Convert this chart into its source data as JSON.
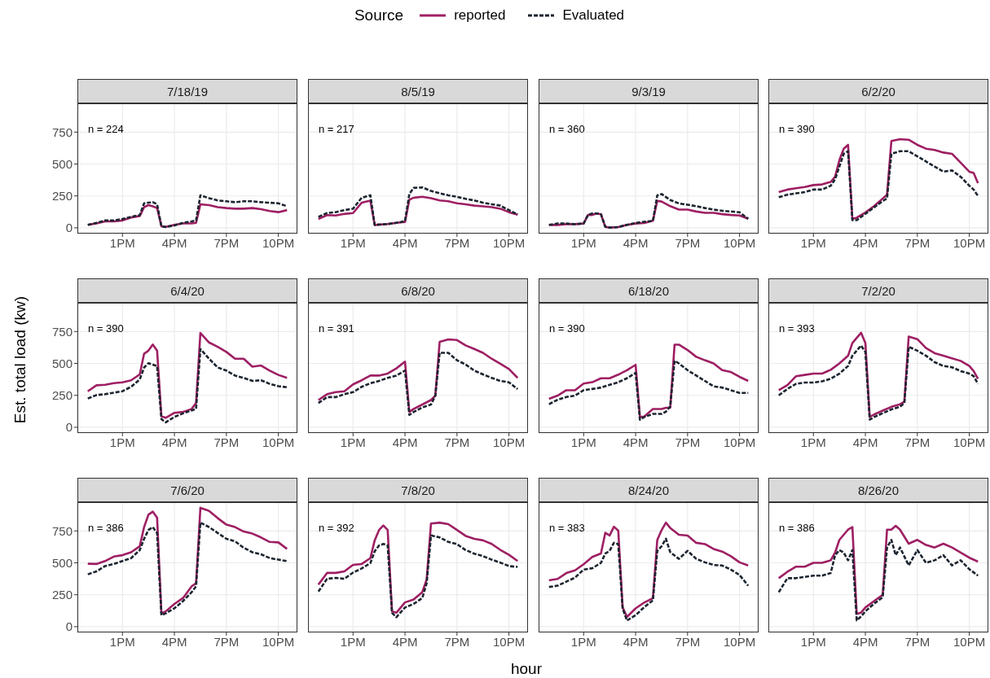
{
  "chart_data": [
    {
      "type": "line",
      "title": "7/18/19",
      "legend": "top",
      "legend_title": "Source",
      "annotations": [
        "n = 224"
      ],
      "x": [
        "--07-18T11:00",
        "--07-18T11:30",
        "--07-18T12:00",
        "--07-18T12:30",
        "--07-18T13:00",
        "--07-18T13:30",
        "--07-18T14:00",
        "--07-18T14:15",
        "--07-18T14:30",
        "--07-18T14:45",
        "--07-18T15:00",
        "--07-18T15:15",
        "--07-18T15:30",
        "--07-18T16:00",
        "--07-18T16:30",
        "--07-18T17:00",
        "--07-18T17:15",
        "--07-18T17:30",
        "--07-18T18:00",
        "--07-18T18:30",
        "--07-18T19:00",
        "--07-18T19:30",
        "--07-18T20:00",
        "--07-18T20:30",
        "--07-18T21:00",
        "--07-18T21:30",
        "--07-18T22:00",
        "--07-18T22:30"
      ],
      "xlim": [
        "--07-18T10:24",
        "--07-18T23:06"
      ],
      "xticks": [
        {
          "value": "--07-18T13:00",
          "label": "1PM"
        },
        {
          "value": "--07-18T16:00",
          "label": "4PM"
        },
        {
          "value": "--07-18T19:00",
          "label": "7PM"
        },
        {
          "value": "--07-18T22:00",
          "label": "10PM"
        }
      ],
      "ylim": [
        -45,
        975
      ],
      "yticks": [
        0,
        250,
        500,
        750
      ],
      "grid": true,
      "series": [
        {
          "name": "reported",
          "color": "#9e1f63",
          "line_style": "solid",
          "values": [
            23,
            35,
            51,
            51,
            58,
            81,
            93,
            162,
            178,
            169,
            155,
            12,
            7,
            23,
            35,
            35,
            39,
            185,
            178,
            162,
            155,
            150,
            150,
            155,
            146,
            132,
            123,
            139
          ]
        },
        {
          "name": "Evaluated",
          "color": "#1c2530",
          "line_style": "dashed",
          "values": [
            23,
            39,
            58,
            58,
            69,
            86,
            100,
            192,
            197,
            201,
            185,
            12,
            7,
            19,
            39,
            51,
            58,
            255,
            232,
            215,
            208,
            201,
            208,
            208,
            201,
            197,
            192,
            169
          ]
        }
      ]
    },
    {
      "type": "line",
      "title": "8/5/19",
      "tick_labels": "x",
      "annotations": [
        "n = 217"
      ],
      "x": [
        "--08-05T11:00",
        "--08-05T11:30",
        "--08-05T12:00",
        "--08-05T12:30",
        "--08-05T13:00",
        "--08-05T13:30",
        "--08-05T14:00",
        "--08-05T14:15",
        "--08-05T15:00",
        "--08-05T15:30",
        "--08-05T16:00",
        "--08-05T16:15",
        "--08-05T16:30",
        "--08-05T17:00",
        "--08-05T17:30",
        "--08-05T18:00",
        "--08-05T18:30",
        "--08-05T19:00",
        "--08-05T19:30",
        "--08-05T20:00",
        "--08-05T20:30",
        "--08-05T21:00",
        "--08-05T21:30",
        "--08-05T22:00",
        "--08-05T22:30"
      ],
      "xlim": [
        "--08-05T10:24",
        "--08-05T23:06"
      ],
      "xticks": [
        {
          "value": "--08-05T13:00",
          "label": "1PM"
        },
        {
          "value": "--08-05T16:00",
          "label": "4PM"
        },
        {
          "value": "--08-05T19:00",
          "label": "7PM"
        },
        {
          "value": "--08-05T22:00",
          "label": "10PM"
        }
      ],
      "ylim": [
        -45,
        975
      ],
      "yticks": [
        0,
        250,
        500,
        750
      ],
      "grid": true,
      "series": [
        {
          "color": "#9e1f63",
          "line_style": "solid",
          "values": [
            69,
            100,
            97,
            109,
            116,
            197,
            213,
            23,
            30,
            39,
            46,
            220,
            236,
            243,
            232,
            215,
            208,
            192,
            185,
            174,
            169,
            162,
            150,
            123,
            104
          ]
        },
        {
          "color": "#1c2530",
          "line_style": "dashed",
          "values": [
            86,
            116,
            123,
            139,
            150,
            236,
            255,
            23,
            30,
            39,
            53,
            266,
            313,
            317,
            289,
            271,
            255,
            243,
            227,
            215,
            197,
            185,
            174,
            139,
            104
          ]
        }
      ]
    },
    {
      "type": "line",
      "title": "9/3/19",
      "tick_labels": "x",
      "annotations": [
        "n = 360"
      ],
      "x": [
        "--09-03T11:00",
        "--09-03T11:30",
        "--09-03T12:00",
        "--09-03T12:30",
        "--09-03T13:00",
        "--09-03T13:15",
        "--09-03T13:30",
        "--09-03T13:45",
        "--09-03T14:00",
        "--09-03T14:15",
        "--09-03T14:30",
        "--09-03T15:00",
        "--09-03T15:30",
        "--09-03T16:00",
        "--09-03T16:30",
        "--09-03T17:00",
        "--09-03T17:15",
        "--09-03T17:30",
        "--09-03T18:00",
        "--09-03T18:30",
        "--09-03T19:00",
        "--09-03T19:30",
        "--09-03T20:00",
        "--09-03T20:30",
        "--09-03T21:00",
        "--09-03T21:30",
        "--09-03T22:00",
        "--09-03T22:30"
      ],
      "xlim": [
        "--09-03T10:24",
        "--09-03T23:06"
      ],
      "xticks": [
        {
          "value": "--09-03T13:00",
          "label": "1PM"
        },
        {
          "value": "--09-03T16:00",
          "label": "4PM"
        },
        {
          "value": "--09-03T19:00",
          "label": "7PM"
        },
        {
          "value": "--09-03T22:00",
          "label": "10PM"
        }
      ],
      "ylim": [
        -45,
        975
      ],
      "yticks": [
        0,
        250,
        500,
        750
      ],
      "grid": true,
      "series": [
        {
          "color": "#9e1f63",
          "line_style": "solid",
          "values": [
            23,
            23,
            29,
            29,
            34,
            101,
            101,
            113,
            107,
            8,
            2,
            6,
            23,
            34,
            38,
            55,
            212,
            206,
            170,
            143,
            143,
            128,
            118,
            118,
            107,
            101,
            97,
            71
          ]
        },
        {
          "color": "#1c2530",
          "line_style": "dashed",
          "values": [
            23,
            34,
            34,
            29,
            34,
            101,
            113,
            113,
            107,
            8,
            2,
            6,
            23,
            38,
            48,
            55,
            254,
            265,
            218,
            191,
            181,
            170,
            155,
            143,
            134,
            128,
            122,
            71
          ]
        }
      ]
    },
    {
      "type": "line",
      "title": "6/2/20",
      "tick_labels": "x",
      "annotations": [
        "n = 390"
      ],
      "x": [
        "--06-02T11:00",
        "--06-02T11:30",
        "--06-02T12:00",
        "--06-02T12:30",
        "--06-02T13:00",
        "--06-02T13:30",
        "--06-02T14:00",
        "--06-02T14:15",
        "--06-02T14:30",
        "--06-02T14:45",
        "--06-02T15:00",
        "--06-02T15:15",
        "--06-02T15:30",
        "--06-02T16:00",
        "--06-02T16:30",
        "--06-02T17:00",
        "--06-02T17:15",
        "--06-02T17:30",
        "--06-02T18:00",
        "--06-02T18:30",
        "--06-02T19:00",
        "--06-02T19:30",
        "--06-02T20:00",
        "--06-02T20:30",
        "--06-02T21:00",
        "--06-02T21:30",
        "--06-02T22:00",
        "--06-02T22:15",
        "--06-02T22:30"
      ],
      "xlim": [
        "--06-02T10:24",
        "--06-02T23:06"
      ],
      "xticks": [
        {
          "value": "--06-02T13:00",
          "label": "1PM"
        },
        {
          "value": "--06-02T16:00",
          "label": "4PM"
        },
        {
          "value": "--06-02T19:00",
          "label": "7PM"
        },
        {
          "value": "--06-02T22:00",
          "label": "10PM"
        }
      ],
      "ylim": [
        -45,
        975
      ],
      "yticks": [
        0,
        250,
        500,
        750
      ],
      "grid": true,
      "series": [
        {
          "color": "#9e1f63",
          "line_style": "solid",
          "values": [
            280,
            300,
            310,
            320,
            335,
            340,
            360,
            400,
            530,
            620,
            650,
            70,
            80,
            120,
            170,
            230,
            260,
            680,
            695,
            690,
            650,
            620,
            610,
            590,
            580,
            510,
            440,
            430,
            350
          ]
        },
        {
          "color": "#1c2530",
          "line_style": "dashed",
          "values": [
            240,
            260,
            270,
            280,
            300,
            300,
            330,
            380,
            480,
            580,
            600,
            60,
            60,
            110,
            160,
            210,
            230,
            580,
            600,
            600,
            560,
            520,
            480,
            440,
            450,
            400,
            330,
            300,
            250
          ]
        }
      ]
    },
    {
      "type": "line",
      "title": "6/4/20",
      "ylabel": "Est. total load (kw)",
      "annotations": [
        "n = 390"
      ],
      "x": [
        "--06-04T11:00",
        "--06-04T11:30",
        "--06-04T12:00",
        "--06-04T12:30",
        "--06-04T13:00",
        "--06-04T13:30",
        "--06-04T14:00",
        "--06-04T14:15",
        "--06-04T14:30",
        "--06-04T14:45",
        "--06-04T15:00",
        "--06-04T15:15",
        "--06-04T15:30",
        "--06-04T16:00",
        "--06-04T16:30",
        "--06-04T17:00",
        "--06-04T17:15",
        "--06-04T17:30",
        "--06-04T18:00",
        "--06-04T18:30",
        "--06-04T19:00",
        "--06-04T19:30",
        "--06-04T20:00",
        "--06-04T20:30",
        "--06-04T21:00",
        "--06-04T21:30",
        "--06-04T22:00",
        "--06-04T22:30"
      ],
      "xlim": [
        "--06-04T10:24",
        "--06-04T23:06"
      ],
      "xticks": [
        {
          "value": "--06-04T13:00",
          "label": "1PM"
        },
        {
          "value": "--06-04T16:00",
          "label": "4PM"
        },
        {
          "value": "--06-04T19:00",
          "label": "7PM"
        },
        {
          "value": "--06-04T22:00",
          "label": "10PM"
        }
      ],
      "ylim": [
        -45,
        975
      ],
      "yticks": [
        0,
        250,
        500,
        750
      ],
      "grid": true,
      "series": [
        {
          "color": "#9e1f63",
          "line_style": "solid",
          "values": [
            282,
            329,
            333,
            345,
            352,
            368,
            414,
            576,
            600,
            648,
            600,
            86,
            74,
            113,
            120,
            144,
            190,
            738,
            664,
            630,
            590,
            537,
            537,
            475,
            484,
            444,
            410,
            387
          ]
        },
        {
          "color": "#1c2530",
          "line_style": "dashed",
          "values": [
            225,
            252,
            259,
            271,
            282,
            317,
            375,
            468,
            502,
            491,
            479,
            63,
            39,
            81,
            109,
            132,
            144,
            613,
            537,
            468,
            444,
            405,
            387,
            363,
            368,
            340,
            322,
            313
          ]
        }
      ]
    },
    {
      "type": "line",
      "title": "6/8/20",
      "tick_labels": "x",
      "annotations": [
        "n = 391"
      ],
      "x": [
        "--06-08T11:00",
        "--06-08T11:30",
        "--06-08T12:00",
        "--06-08T12:30",
        "--06-08T13:00",
        "--06-08T13:30",
        "--06-08T14:00",
        "--06-08T14:30",
        "--06-08T15:00",
        "--06-08T15:30",
        "--06-08T16:00",
        "--06-08T16:15",
        "--06-08T16:30",
        "--06-08T17:00",
        "--06-08T17:30",
        "--06-08T17:45",
        "--06-08T18:00",
        "--06-08T18:30",
        "--06-08T19:00",
        "--06-08T19:30",
        "--06-08T20:00",
        "--06-08T20:30",
        "--06-08T21:00",
        "--06-08T21:30",
        "--06-08T22:00",
        "--06-08T22:30"
      ],
      "xlim": [
        "--06-08T10:24",
        "--06-08T23:06"
      ],
      "xticks": [
        {
          "value": "--06-08T13:00",
          "label": "1PM"
        },
        {
          "value": "--06-08T16:00",
          "label": "4PM"
        },
        {
          "value": "--06-08T19:00",
          "label": "7PM"
        },
        {
          "value": "--06-08T22:00",
          "label": "10PM"
        }
      ],
      "ylim": [
        -45,
        975
      ],
      "yticks": [
        0,
        250,
        500,
        750
      ],
      "grid": true,
      "series": [
        {
          "color": "#9e1f63",
          "line_style": "solid",
          "values": [
            213,
            259,
            275,
            282,
            336,
            368,
            405,
            405,
            421,
            461,
            514,
            120,
            144,
            178,
            213,
            248,
            669,
            688,
            683,
            641,
            613,
            583,
            537,
            498,
            456,
            387
          ]
        },
        {
          "color": "#1c2530",
          "line_style": "dashed",
          "values": [
            190,
            236,
            236,
            259,
            275,
            317,
            345,
            363,
            387,
            405,
            444,
            97,
            120,
            155,
            178,
            248,
            583,
            583,
            525,
            491,
            444,
            414,
            387,
            363,
            352,
            299
          ]
        }
      ]
    },
    {
      "type": "line",
      "title": "6/18/20",
      "tick_labels": "x",
      "annotations": [
        "n = 390"
      ],
      "x": [
        "--06-18T11:00",
        "--06-18T11:30",
        "--06-18T12:00",
        "--06-18T12:30",
        "--06-18T13:00",
        "--06-18T13:30",
        "--06-18T14:00",
        "--06-18T14:30",
        "--06-18T15:00",
        "--06-18T15:30",
        "--06-18T16:00",
        "--06-18T16:15",
        "--06-18T16:30",
        "--06-18T17:00",
        "--06-18T17:30",
        "--06-18T17:45",
        "--06-18T18:00",
        "--06-18T18:15",
        "--06-18T18:30",
        "--06-18T19:00",
        "--06-18T19:30",
        "--06-18T20:00",
        "--06-18T20:30",
        "--06-18T21:00",
        "--06-18T21:30",
        "--06-18T22:00",
        "--06-18T22:30"
      ],
      "xlim": [
        "--06-18T10:24",
        "--06-18T23:06"
      ],
      "xticks": [
        {
          "value": "--06-18T13:00",
          "label": "1PM"
        },
        {
          "value": "--06-18T16:00",
          "label": "4PM"
        },
        {
          "value": "--06-18T19:00",
          "label": "7PM"
        },
        {
          "value": "--06-18T22:00",
          "label": "10PM"
        }
      ],
      "ylim": [
        -45,
        975
      ],
      "yticks": [
        0,
        250,
        500,
        750
      ],
      "grid": true,
      "series": [
        {
          "color": "#9e1f63",
          "line_style": "solid",
          "values": [
            223,
            248,
            290,
            290,
            342,
            353,
            384,
            384,
            412,
            447,
            489,
            80,
            84,
            143,
            143,
            153,
            153,
            647,
            647,
            605,
            552,
            525,
            500,
            447,
            433,
            395,
            363
          ]
        },
        {
          "color": "#1c2530",
          "line_style": "dashed",
          "values": [
            181,
            216,
            237,
            248,
            290,
            300,
            311,
            332,
            353,
            384,
            426,
            59,
            80,
            105,
            105,
            122,
            164,
            521,
            500,
            447,
            405,
            363,
            321,
            311,
            290,
            269,
            269
          ]
        }
      ]
    },
    {
      "type": "line",
      "title": "7/2/20",
      "tick_labels": "x",
      "annotations": [
        "n = 393"
      ],
      "x": [
        "--07-02T11:00",
        "--07-02T11:30",
        "--07-02T12:00",
        "--07-02T12:30",
        "--07-02T13:00",
        "--07-02T13:30",
        "--07-02T14:00",
        "--07-02T14:30",
        "--07-02T15:00",
        "--07-02T15:15",
        "--07-02T15:30",
        "--07-02T15:45",
        "--07-02T16:00",
        "--07-02T16:15",
        "--07-02T16:30",
        "--07-02T17:00",
        "--07-02T17:30",
        "--07-02T18:00",
        "--07-02T18:15",
        "--07-02T18:30",
        "--07-02T19:00",
        "--07-02T19:30",
        "--07-02T20:00",
        "--07-02T20:30",
        "--07-02T21:00",
        "--07-02T21:30",
        "--07-02T22:00",
        "--07-02T22:15",
        "--07-02T22:30"
      ],
      "xlim": [
        "--07-02T10:24",
        "--07-02T23:06"
      ],
      "xticks": [
        {
          "value": "--07-02T13:00",
          "label": "1PM"
        },
        {
          "value": "--07-02T16:00",
          "label": "4PM"
        },
        {
          "value": "--07-02T19:00",
          "label": "7PM"
        },
        {
          "value": "--07-02T22:00",
          "label": "10PM"
        }
      ],
      "ylim": [
        -45,
        975
      ],
      "yticks": [
        0,
        250,
        500,
        750
      ],
      "grid": true,
      "series": [
        {
          "color": "#9e1f63",
          "line_style": "solid",
          "values": [
            290,
            330,
            400,
            410,
            420,
            420,
            450,
            500,
            560,
            660,
            700,
            740,
            660,
            80,
            100,
            130,
            160,
            180,
            200,
            710,
            690,
            620,
            580,
            560,
            540,
            520,
            480,
            440,
            380
          ]
        },
        {
          "color": "#1c2530",
          "line_style": "dashed",
          "values": [
            250,
            300,
            340,
            350,
            350,
            360,
            380,
            420,
            480,
            560,
            600,
            640,
            590,
            60,
            80,
            110,
            140,
            160,
            190,
            630,
            600,
            560,
            510,
            480,
            470,
            440,
            420,
            400,
            340
          ]
        }
      ]
    },
    {
      "type": "line",
      "title": "7/6/20",
      "annotations": [
        "n = 386"
      ],
      "x": [
        "--07-06T11:00",
        "--07-06T11:30",
        "--07-06T12:00",
        "--07-06T12:30",
        "--07-06T13:00",
        "--07-06T13:30",
        "--07-06T14:00",
        "--07-06T14:15",
        "--07-06T14:30",
        "--07-06T14:45",
        "--07-06T15:00",
        "--07-06T15:15",
        "--07-06T15:30",
        "--07-06T16:00",
        "--07-06T16:30",
        "--07-06T17:00",
        "--07-06T17:15",
        "--07-06T17:30",
        "--07-06T18:00",
        "--07-06T18:30",
        "--07-06T19:00",
        "--07-06T19:30",
        "--07-06T20:00",
        "--07-06T20:30",
        "--07-06T21:00",
        "--07-06T21:30",
        "--07-06T22:00",
        "--07-06T22:30"
      ],
      "xlim": [
        "--07-06T10:24",
        "--07-06T23:06"
      ],
      "xticks": [
        {
          "value": "--07-06T13:00",
          "label": "1PM"
        },
        {
          "value": "--07-06T16:00",
          "label": "4PM"
        },
        {
          "value": "--07-06T19:00",
          "label": "7PM"
        },
        {
          "value": "--07-06T22:00",
          "label": "10PM"
        }
      ],
      "ylim": [
        -45,
        975
      ],
      "yticks": [
        0,
        250,
        500,
        750
      ],
      "grid": true,
      "series": [
        {
          "color": "#9e1f63",
          "line_style": "solid",
          "values": [
            493,
            491,
            514,
            549,
            560,
            583,
            630,
            780,
            877,
            901,
            854,
            104,
            120,
            178,
            225,
            317,
            340,
            931,
            907,
            850,
            799,
            780,
            745,
            729,
            699,
            664,
            660,
            609
          ]
        },
        {
          "color": "#1c2530",
          "line_style": "dashed",
          "values": [
            410,
            433,
            475,
            491,
            514,
            537,
            600,
            688,
            757,
            780,
            734,
            90,
            104,
            144,
            201,
            271,
            317,
            815,
            780,
            734,
            688,
            669,
            618,
            583,
            567,
            537,
            525,
            514
          ]
        }
      ]
    },
    {
      "type": "line",
      "title": "7/8/20",
      "xlabel": "hour",
      "tick_labels": "x",
      "annotations": [
        "n = 392"
      ],
      "x": [
        "--07-08T11:00",
        "--07-08T11:30",
        "--07-08T12:00",
        "--07-08T12:30",
        "--07-08T13:00",
        "--07-08T13:30",
        "--07-08T14:00",
        "--07-08T14:15",
        "--07-08T14:30",
        "--07-08T14:45",
        "--07-08T15:00",
        "--07-08T15:15",
        "--07-08T15:30",
        "--07-08T16:00",
        "--07-08T16:30",
        "--07-08T17:00",
        "--07-08T17:15",
        "--07-08T17:30",
        "--07-08T18:00",
        "--07-08T18:30",
        "--07-08T19:00",
        "--07-08T19:30",
        "--07-08T20:00",
        "--07-08T20:30",
        "--07-08T21:00",
        "--07-08T21:30",
        "--07-08T22:00",
        "--07-08T22:30"
      ],
      "xlim": [
        "--07-08T10:24",
        "--07-08T23:06"
      ],
      "xticks": [
        {
          "value": "--07-08T13:00",
          "label": "1PM"
        },
        {
          "value": "--07-08T16:00",
          "label": "4PM"
        },
        {
          "value": "--07-08T19:00",
          "label": "7PM"
        },
        {
          "value": "--07-08T22:00",
          "label": "10PM"
        }
      ],
      "ylim": [
        -45,
        975
      ],
      "yticks": [
        0,
        250,
        500,
        750
      ],
      "grid": true,
      "series": [
        {
          "color": "#9e1f63",
          "line_style": "solid",
          "values": [
            329,
            421,
            421,
            433,
            484,
            491,
            537,
            676,
            757,
            792,
            757,
            120,
            109,
            190,
            213,
            271,
            370,
            808,
            815,
            803,
            757,
            711,
            688,
            676,
            648,
            602,
            563,
            514
          ]
        },
        {
          "color": "#1c2530",
          "line_style": "dashed",
          "values": [
            275,
            375,
            382,
            375,
            424,
            456,
            498,
            590,
            636,
            648,
            636,
            109,
            74,
            150,
            178,
            225,
            340,
            715,
            699,
            664,
            646,
            600,
            572,
            553,
            525,
            502,
            475,
            468
          ]
        }
      ]
    },
    {
      "type": "line",
      "title": "8/24/20",
      "tick_labels": "x",
      "annotations": [
        "n = 383"
      ],
      "x": [
        "--08-24T11:00",
        "--08-24T11:30",
        "--08-24T12:00",
        "--08-24T12:30",
        "--08-24T13:00",
        "--08-24T13:30",
        "--08-24T14:00",
        "--08-24T14:15",
        "--08-24T14:30",
        "--08-24T14:45",
        "--08-24T15:00",
        "--08-24T15:15",
        "--08-24T15:30",
        "--08-24T16:00",
        "--08-24T16:30",
        "--08-24T17:00",
        "--08-24T17:15",
        "--08-24T17:30",
        "--08-24T17:45",
        "--08-24T18:00",
        "--08-24T18:30",
        "--08-24T19:00",
        "--08-24T19:30",
        "--08-24T20:00",
        "--08-24T20:30",
        "--08-24T21:00",
        "--08-24T21:30",
        "--08-24T22:00",
        "--08-24T22:30"
      ],
      "xlim": [
        "--08-24T10:24",
        "--08-24T23:06"
      ],
      "xticks": [
        {
          "value": "--08-24T13:00",
          "label": "1PM"
        },
        {
          "value": "--08-24T16:00",
          "label": "4PM"
        },
        {
          "value": "--08-24T19:00",
          "label": "7PM"
        },
        {
          "value": "--08-24T22:00",
          "label": "10PM"
        }
      ],
      "ylim": [
        -45,
        975
      ],
      "yticks": [
        0,
        250,
        500,
        750
      ],
      "grid": true,
      "series": [
        {
          "color": "#9e1f63",
          "line_style": "solid",
          "values": [
            363,
            374,
            420,
            441,
            489,
            546,
            573,
            735,
            714,
            783,
            752,
            153,
            76,
            143,
            189,
            223,
            678,
            756,
            815,
            773,
            720,
            714,
            657,
            647,
            609,
            588,
            552,
            504,
            479
          ]
        },
        {
          "color": "#1c2530",
          "line_style": "dashed",
          "values": [
            311,
            321,
            353,
            384,
            447,
            458,
            500,
            573,
            594,
            657,
            647,
            143,
            48,
            90,
            153,
            206,
            594,
            630,
            689,
            584,
            531,
            594,
            531,
            504,
            483,
            479,
            447,
            405,
            321
          ]
        }
      ]
    },
    {
      "type": "line",
      "title": "8/26/20",
      "tick_labels": "x",
      "annotations": [
        "n = 386"
      ],
      "x": [
        "--08-26T11:00",
        "--08-26T11:30",
        "--08-26T12:00",
        "--08-26T12:30",
        "--08-26T13:00",
        "--08-26T13:30",
        "--08-26T14:00",
        "--08-26T14:15",
        "--08-26T14:30",
        "--08-26T14:45",
        "--08-26T15:00",
        "--08-26T15:15",
        "--08-26T15:30",
        "--08-26T15:45",
        "--08-26T16:00",
        "--08-26T16:30",
        "--08-26T17:00",
        "--08-26T17:15",
        "--08-26T17:30",
        "--08-26T17:45",
        "--08-26T18:00",
        "--08-26T18:30",
        "--08-26T19:00",
        "--08-26T19:30",
        "--08-26T20:00",
        "--08-26T20:30",
        "--08-26T21:00",
        "--08-26T21:30",
        "--08-26T22:00",
        "--08-26T22:30"
      ],
      "xlim": [
        "--08-26T10:24",
        "--08-26T23:06"
      ],
      "xticks": [
        {
          "value": "--08-26T13:00",
          "label": "1PM"
        },
        {
          "value": "--08-26T16:00",
          "label": "4PM"
        },
        {
          "value": "--08-26T19:00",
          "label": "7PM"
        },
        {
          "value": "--08-26T22:00",
          "label": "10PM"
        }
      ],
      "ylim": [
        -45,
        975
      ],
      "yticks": [
        0,
        250,
        500,
        750
      ],
      "grid": true,
      "series": [
        {
          "color": "#9e1f63",
          "line_style": "solid",
          "values": [
            380,
            430,
            470,
            470,
            500,
            500,
            520,
            580,
            680,
            720,
            760,
            780,
            100,
            110,
            150,
            200,
            250,
            760,
            760,
            790,
            760,
            650,
            680,
            640,
            620,
            650,
            620,
            580,
            540,
            510
          ]
        },
        {
          "color": "#1c2530",
          "line_style": "dashed",
          "values": [
            270,
            380,
            380,
            390,
            400,
            400,
            420,
            560,
            600,
            580,
            520,
            600,
            50,
            80,
            120,
            180,
            230,
            620,
            680,
            560,
            620,
            480,
            600,
            500,
            520,
            560,
            480,
            520,
            450,
            400
          ]
        }
      ]
    }
  ]
}
